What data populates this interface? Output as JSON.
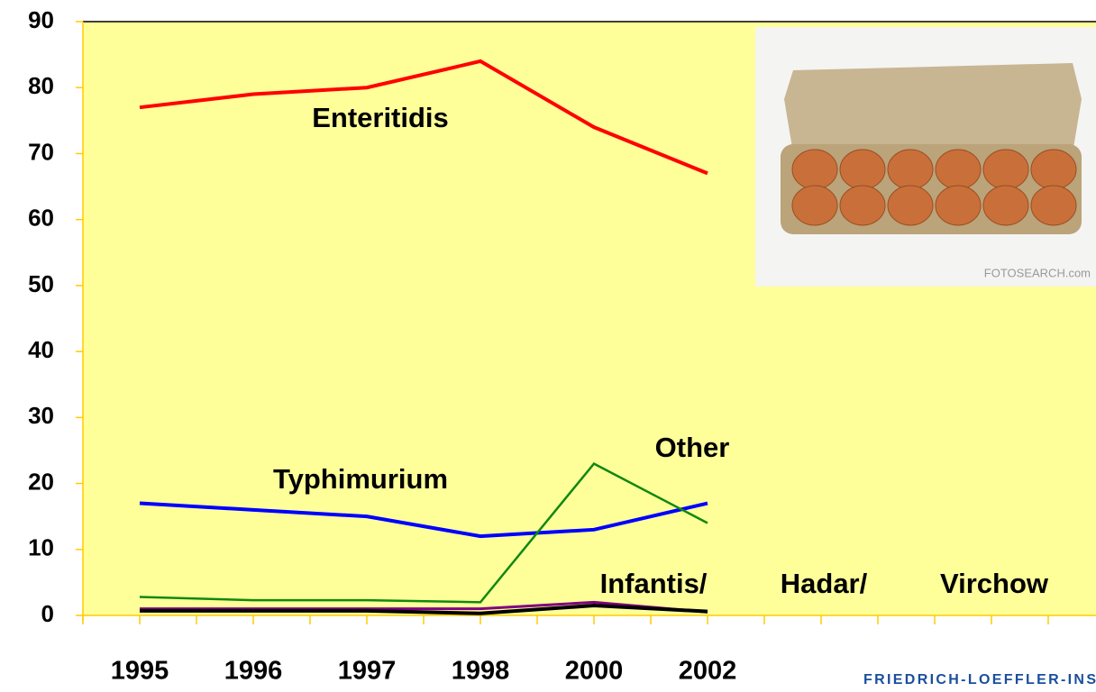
{
  "chart_data": {
    "type": "line",
    "categories": [
      "1995",
      "1996",
      "1997",
      "1998",
      "2000",
      "2002"
    ],
    "series": [
      {
        "name": "Enteritidis",
        "color": "#ff0000",
        "values": [
          77,
          79,
          80,
          84,
          74,
          67
        ]
      },
      {
        "name": "Typhimurium",
        "color": "#0000ff",
        "values": [
          17,
          16,
          15,
          12,
          13,
          17
        ]
      },
      {
        "name": "Other",
        "color": "#118811",
        "values": [
          2.8,
          2.3,
          2.3,
          2,
          23,
          14
        ]
      },
      {
        "color": "#800080",
        "values": [
          1,
          1,
          1,
          1,
          2,
          0.5
        ]
      },
      {
        "color": "#000000",
        "values": [
          0.7,
          0.7,
          0.7,
          0.3,
          1.5,
          0.6
        ]
      }
    ],
    "annotations": [
      "Infantis/",
      "Hadar/",
      "Virchow"
    ],
    "ylim": [
      0,
      90
    ],
    "yticks": [
      0,
      10,
      20,
      30,
      40,
      50,
      60,
      70,
      80,
      90
    ],
    "background": "#ffff99",
    "image_watermark": "FOTOSEARCH.com",
    "footer": "FRIEDRICH-LOEFFLER-INS"
  }
}
